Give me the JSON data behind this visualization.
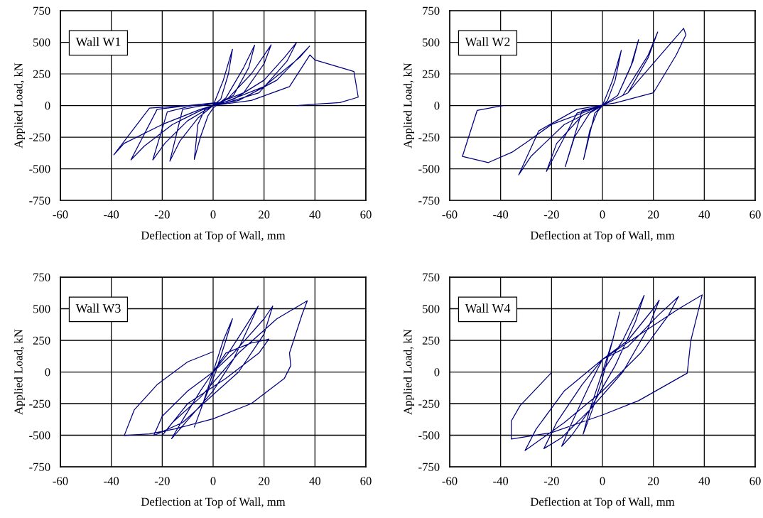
{
  "chart_data": [
    {
      "type": "line",
      "xlabel": "Deflection at Top of Wall, mm",
      "ylabel": "Applied Load, kN",
      "annotations": [
        "Wall W1"
      ],
      "xlim": [
        -60,
        60
      ],
      "ylim": [
        -750,
        750
      ],
      "xticks": [
        -60,
        -40,
        -20,
        0,
        20,
        40,
        60
      ],
      "yticks": [
        -750,
        -500,
        -250,
        0,
        250,
        500,
        750
      ],
      "grid": true,
      "series": [
        {
          "color": "#000080",
          "x": [
            0,
            4,
            7.6,
            6,
            3,
            0,
            -3,
            -6,
            -7.4,
            -5,
            -2,
            0,
            5,
            12,
            16.3,
            14,
            8,
            2,
            -4,
            -12,
            -17,
            -13,
            -6,
            0,
            6,
            15,
            22.8,
            20,
            12,
            2,
            -8,
            -18,
            -23.7,
            -19,
            -10,
            0,
            8,
            20,
            28,
            32.7,
            29,
            18,
            5,
            -10,
            -22,
            -32.3,
            -27,
            -16,
            -5,
            0,
            10,
            25,
            37.9,
            34,
            20,
            5,
            -10,
            -25,
            -39,
            -35,
            -20,
            -5,
            0,
            15,
            30,
            38,
            40,
            55.3,
            57,
            49.8,
            40,
            33
          ],
          "values": [
            0,
            200,
            445,
            250,
            50,
            0,
            -20,
            -150,
            -426,
            -250,
            -80,
            -20,
            60,
            300,
            477,
            300,
            80,
            20,
            0,
            -30,
            -440,
            -280,
            -100,
            0,
            60,
            250,
            480,
            330,
            100,
            20,
            0,
            -50,
            -430,
            -300,
            -120,
            0,
            50,
            200,
            380,
            496,
            350,
            100,
            20,
            0,
            -30,
            -430,
            -320,
            -150,
            -40,
            0,
            40,
            200,
            470,
            380,
            150,
            30,
            0,
            -20,
            -390,
            -300,
            -150,
            -30,
            0,
            40,
            150,
            400,
            360,
            269,
            66,
            23,
            10,
            0
          ]
        }
      ]
    },
    {
      "type": "line",
      "xlabel": "Deflection at Top of Wall, mm",
      "ylabel": "Applied Load, kN",
      "annotations": [
        "Wall W2"
      ],
      "xlim": [
        -60,
        60
      ],
      "ylim": [
        -750,
        750
      ],
      "xticks": [
        -60,
        -40,
        -20,
        0,
        20,
        40,
        60
      ],
      "yticks": [
        -750,
        -500,
        -250,
        0,
        250,
        500,
        750
      ],
      "grid": true,
      "series": [
        {
          "color": "#000080",
          "x": [
            0,
            4,
            7.4,
            5,
            2,
            0,
            -3,
            -7.4,
            -5,
            -2,
            0,
            6,
            12,
            14.2,
            11,
            6,
            0,
            -8,
            -14.6,
            -11,
            -5,
            0,
            8,
            18,
            21.7,
            18,
            10,
            0,
            -10,
            -22,
            -18,
            -8,
            0,
            10,
            25,
            31.9,
            32.8,
            29,
            20,
            5,
            -10,
            -25,
            -32.9,
            -28,
            -15,
            0,
            -20,
            -30,
            -35.5,
            -44.8,
            -55,
            -49.2,
            -39
          ],
          "values": [
            0,
            200,
            436,
            200,
            40,
            0,
            -60,
            -426,
            -200,
            -50,
            0,
            80,
            350,
            521,
            300,
            80,
            0,
            -40,
            -483,
            -250,
            -60,
            0,
            80,
            400,
            581,
            380,
            100,
            0,
            -60,
            -521,
            -300,
            -80,
            0,
            100,
            450,
            610,
            559,
            400,
            100,
            20,
            -30,
            -200,
            -549,
            -400,
            -150,
            0,
            -150,
            -293,
            -369,
            -451,
            -402,
            -38,
            0
          ]
        }
      ]
    },
    {
      "type": "line",
      "xlabel": "Deflection at Top of Wall, mm",
      "ylabel": "Applied Load, kN",
      "annotations": [
        "Wall W3"
      ],
      "xlim": [
        -60,
        60
      ],
      "ylim": [
        -750,
        750
      ],
      "xticks": [
        -60,
        -40,
        -20,
        0,
        20,
        40,
        60
      ],
      "yticks": [
        -750,
        -500,
        -250,
        0,
        250,
        500,
        750
      ],
      "grid": true,
      "series": [
        {
          "color": "#000080",
          "x": [
            0,
            4,
            7.6,
            5,
            1,
            -4,
            -7.4,
            -4,
            0,
            6,
            14,
            17.7,
            15,
            8,
            0,
            -10,
            -16.3,
            -12,
            -5,
            0,
            8,
            20,
            23.4,
            20,
            10,
            0,
            -12,
            -23.3,
            -20,
            -10,
            0,
            5,
            15,
            20,
            21.9,
            18,
            5,
            -10,
            -20,
            -16,
            -5,
            10,
            25,
            37,
            35,
            30,
            30.5,
            28,
            15,
            0,
            -15,
            -25,
            -34.9,
            -31,
            -22,
            -10,
            0
          ],
          "values": [
            0,
            250,
            421,
            250,
            0,
            -250,
            -436,
            -250,
            0,
            150,
            400,
            521,
            400,
            100,
            -150,
            -380,
            -527,
            -380,
            -150,
            0,
            150,
            420,
            521,
            300,
            0,
            -180,
            -400,
            -502,
            -350,
            -150,
            0,
            150,
            230,
            250,
            261,
            150,
            -50,
            -250,
            -502,
            -400,
            -200,
            150,
            420,
            563,
            458,
            150,
            50,
            -50,
            -250,
            -370,
            -450,
            -490,
            -502,
            -300,
            -100,
            80,
            160
          ]
        }
      ]
    },
    {
      "type": "line",
      "xlabel": "Deflection at Top of Wall, mm",
      "ylabel": "Applied Load, kN",
      "annotations": [
        "Wall W4"
      ],
      "xlim": [
        -60,
        60
      ],
      "ylim": [
        -750,
        750
      ],
      "xticks": [
        -60,
        -40,
        -20,
        0,
        20,
        40,
        60
      ],
      "yticks": [
        -750,
        -500,
        -250,
        0,
        250,
        500,
        750
      ],
      "grid": true,
      "series": [
        {
          "color": "#000080",
          "x": [
            0,
            4,
            6.8,
            4,
            0,
            -4,
            -7.6,
            -5,
            0,
            8,
            14,
            16.4,
            13,
            5,
            -5,
            -12,
            -16,
            -12,
            -5,
            0,
            10,
            20,
            22.3,
            18,
            8,
            -5,
            -16,
            -23,
            -18,
            -8,
            0,
            10,
            22,
            29.9,
            26,
            15,
            0,
            -15,
            -30.4,
            -26,
            -15,
            0,
            15,
            30,
            39.2,
            34.7,
            33.3,
            14.2,
            0,
            -20,
            -35.8,
            -35.8,
            -32.3,
            -20.2
          ],
          "values": [
            0,
            250,
            474,
            250,
            -50,
            -300,
            -492,
            -300,
            0,
            250,
            500,
            606,
            400,
            50,
            -300,
            -500,
            -587,
            -400,
            -100,
            100,
            250,
            500,
            568,
            350,
            0,
            -300,
            -520,
            -606,
            -400,
            -100,
            100,
            200,
            450,
            597,
            450,
            150,
            -150,
            -400,
            -621,
            -450,
            -150,
            100,
            300,
            500,
            610,
            246,
            -9,
            -227,
            -340,
            -480,
            -530,
            -388,
            -265,
            -9
          ]
        }
      ]
    }
  ]
}
